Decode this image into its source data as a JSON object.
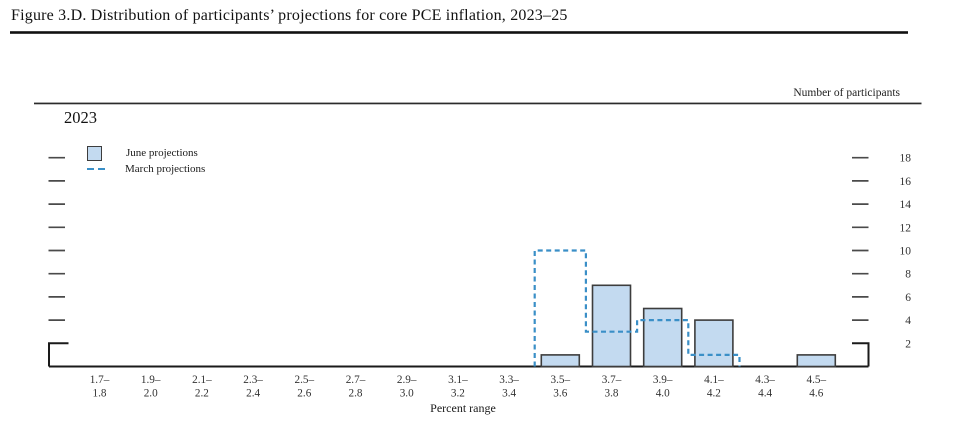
{
  "figure": {
    "title": "Figure 3.D. Distribution of participants’ projections for core PCE inflation, 2023–25"
  },
  "chart_data": {
    "type": "bar",
    "panel_label": "2023",
    "axis_header_right": "Number of participants",
    "xlabel": "Percent range",
    "categories": [
      "1.7–1.8",
      "1.9–2.0",
      "2.1–2.2",
      "2.3–2.4",
      "2.5–2.6",
      "2.7–2.8",
      "2.9–3.0",
      "3.1–3.2",
      "3.3–3.4",
      "3.5–3.6",
      "3.7–3.8",
      "3.9–4.0",
      "4.1–4.2",
      "4.3–4.4",
      "4.5–4.6"
    ],
    "y_ticks": [
      2,
      4,
      6,
      8,
      10,
      12,
      14,
      16,
      18
    ],
    "ylim": [
      0,
      22
    ],
    "grid": false,
    "legend_position": "top-left",
    "colors": {
      "bar_fill": "#c3daf0",
      "bar_stroke": "#3d3d3d",
      "dash_blue": "#3a8fc7",
      "axis": "#1a1a1a",
      "tick": "#4a4a4a"
    },
    "series": [
      {
        "name": "June projections",
        "style": "bar",
        "values": [
          0,
          0,
          0,
          0,
          0,
          0,
          0,
          0,
          0,
          1,
          7,
          5,
          4,
          0,
          1
        ]
      },
      {
        "name": "March projections",
        "style": "dashed-step-outline",
        "values": [
          0,
          0,
          0,
          0,
          0,
          0,
          0,
          0,
          0,
          10,
          3,
          4,
          1,
          0,
          0
        ]
      }
    ]
  }
}
